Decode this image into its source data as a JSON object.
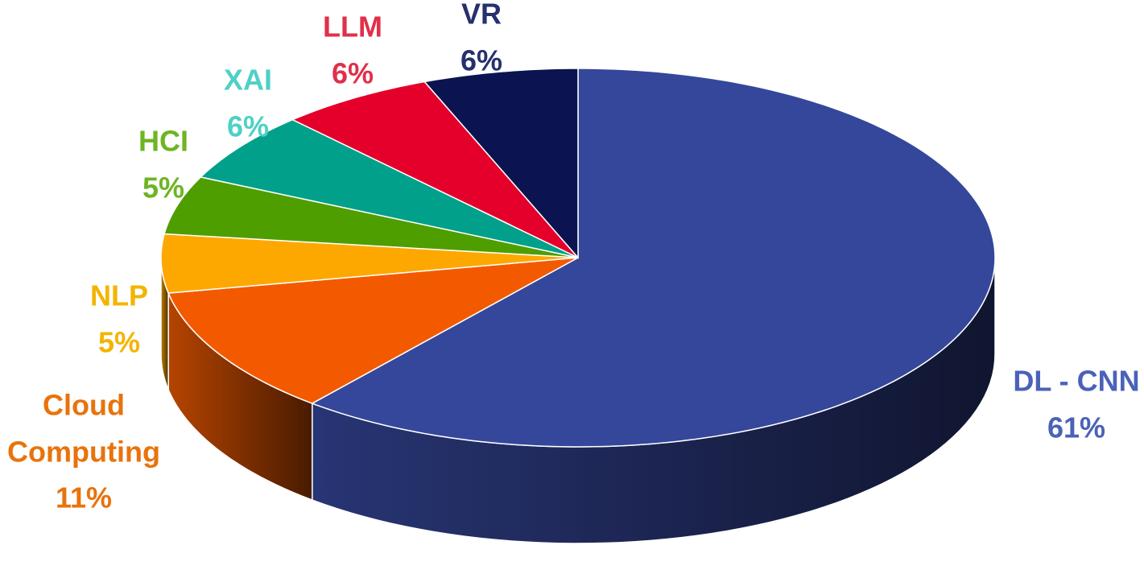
{
  "chart_data": {
    "type": "pie",
    "categories": [
      "DL - CNN",
      "Cloud Computing",
      "NLP",
      "HCI",
      "XAI",
      "LLM",
      "VR"
    ],
    "values": [
      61,
      11,
      5,
      5,
      6,
      6,
      6
    ],
    "value_labels": [
      "61%",
      "11%",
      "5%",
      "5%",
      "6%",
      "6%",
      "6%"
    ],
    "colors": [
      "#35479b",
      "#f35a00",
      "#fda800",
      "#4f9e00",
      "#00a08a",
      "#e4002b",
      "#0b1450"
    ],
    "label_colors": [
      "#4a62b8",
      "#e8730c",
      "#f3b400",
      "#6db523",
      "#4fd0c6",
      "#e0304a",
      "#27306d"
    ]
  }
}
